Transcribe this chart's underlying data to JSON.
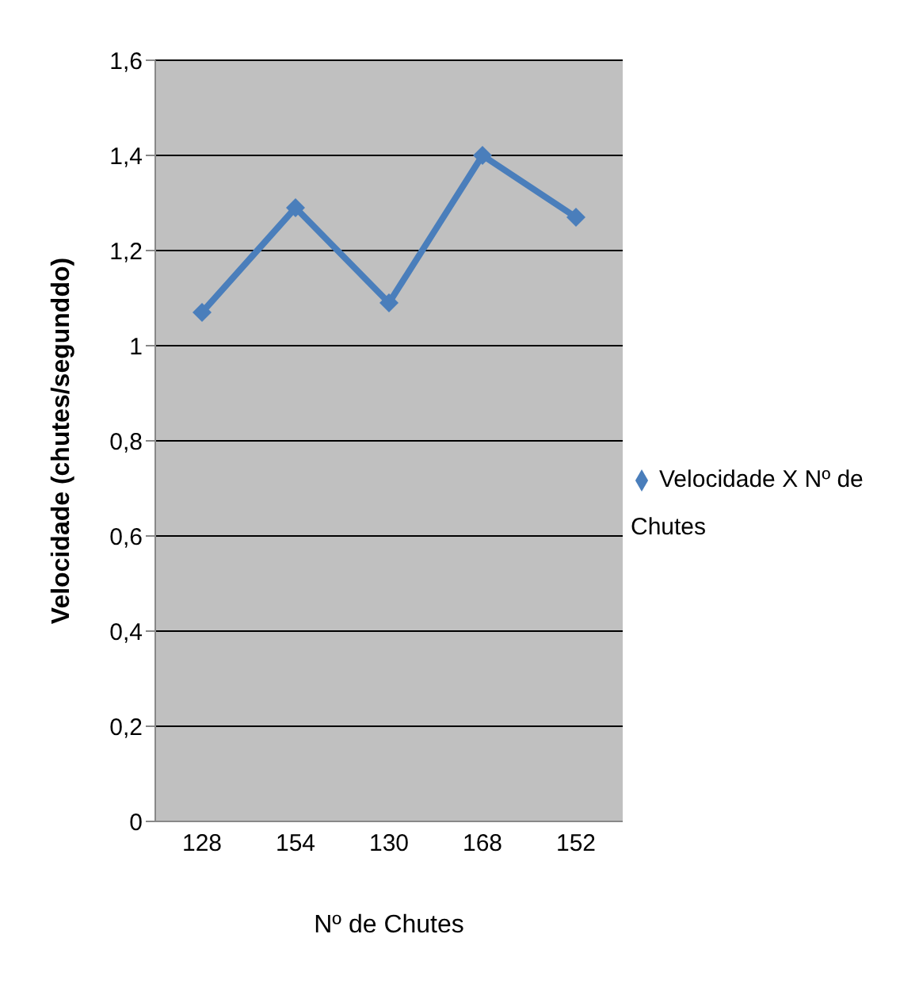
{
  "chart_data": {
    "type": "line",
    "xlabel": "Nº de Chutes",
    "ylabel": "Velocidade (chutes/segunddo)",
    "categories": [
      "128",
      "154",
      "130",
      "168",
      "152"
    ],
    "series": [
      {
        "name": "Velocidade X Nº de Chutes",
        "color": "#4a7ebb",
        "values": [
          1.07,
          1.29,
          1.09,
          1.4,
          1.27
        ]
      }
    ],
    "ylim": [
      0,
      1.6
    ],
    "yticks": [
      {
        "value": 0,
        "label": "0"
      },
      {
        "value": 0.2,
        "label": "0,2"
      },
      {
        "value": 0.4,
        "label": "0,4"
      },
      {
        "value": 0.6,
        "label": "0,6"
      },
      {
        "value": 0.8,
        "label": "0,8"
      },
      {
        "value": 1,
        "label": "1"
      },
      {
        "value": 1.2,
        "label": "1,2"
      },
      {
        "value": 1.4,
        "label": "1,4"
      },
      {
        "value": 1.6,
        "label": "1,6"
      }
    ],
    "grid": "y",
    "legend": "right",
    "marker": "diamond",
    "line_style": "solid"
  }
}
